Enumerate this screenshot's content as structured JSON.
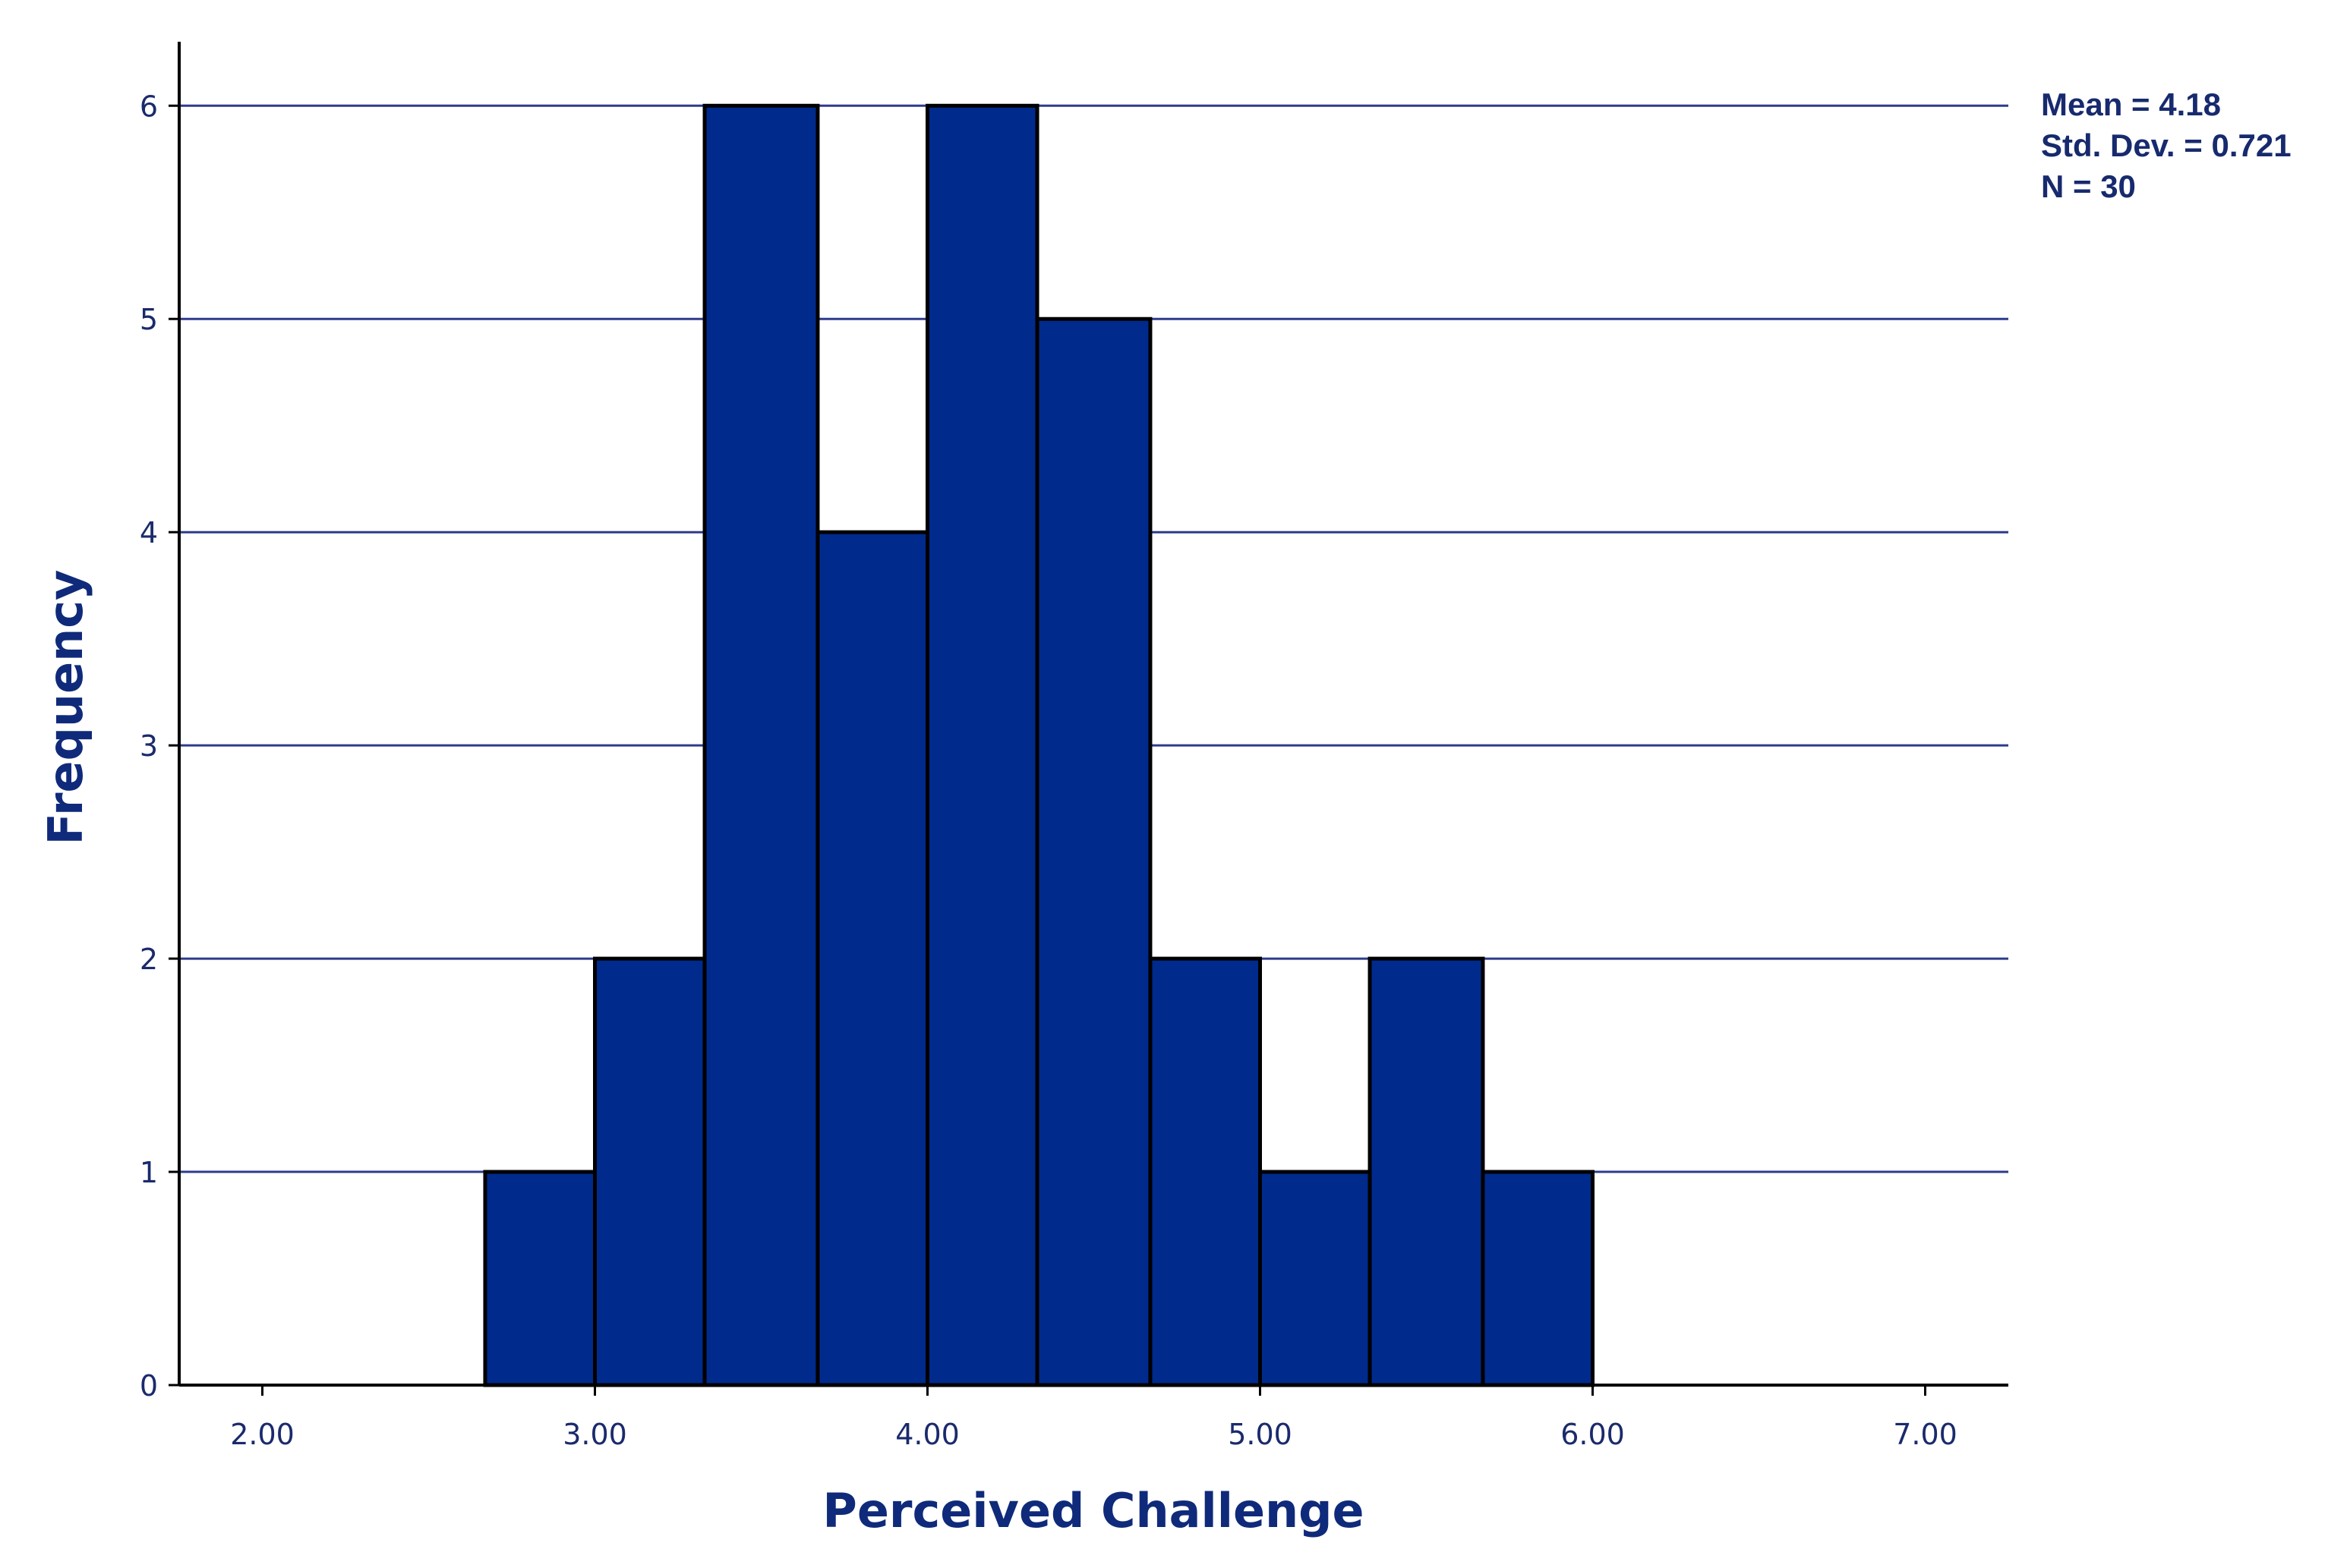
{
  "chart_data": {
    "type": "bar",
    "bins": [
      {
        "start": 2.67,
        "end": 3.0,
        "count": 1
      },
      {
        "start": 3.0,
        "end": 3.33,
        "count": 2
      },
      {
        "start": 3.33,
        "end": 3.67,
        "count": 6
      },
      {
        "start": 3.67,
        "end": 4.0,
        "count": 4
      },
      {
        "start": 4.0,
        "end": 4.33,
        "count": 6
      },
      {
        "start": 4.33,
        "end": 4.67,
        "count": 5
      },
      {
        "start": 4.67,
        "end": 5.0,
        "count": 2
      },
      {
        "start": 5.0,
        "end": 5.33,
        "count": 1
      },
      {
        "start": 5.33,
        "end": 5.67,
        "count": 2
      },
      {
        "start": 5.67,
        "end": 6.0,
        "count": 1
      }
    ],
    "xlabel": "Perceived Challenge",
    "ylabel": "Frequency",
    "xlim": [
      1.75,
      7.25
    ],
    "ylim": [
      0,
      6.3
    ],
    "x_ticks": [
      "2.00",
      "3.00",
      "4.00",
      "5.00",
      "6.00",
      "7.00"
    ],
    "y_ticks": [
      "0",
      "1",
      "2",
      "3",
      "4",
      "5",
      "6"
    ],
    "grid": "horizontal",
    "stats": {
      "mean": "Mean = 4.18",
      "std_dev": "Std. Dev. = 0.721",
      "n": "N = 30"
    },
    "colors": {
      "bar": "#002a8c",
      "gridline": "#2e3b8c",
      "axis": "#000000",
      "text": "#172a6e"
    }
  }
}
